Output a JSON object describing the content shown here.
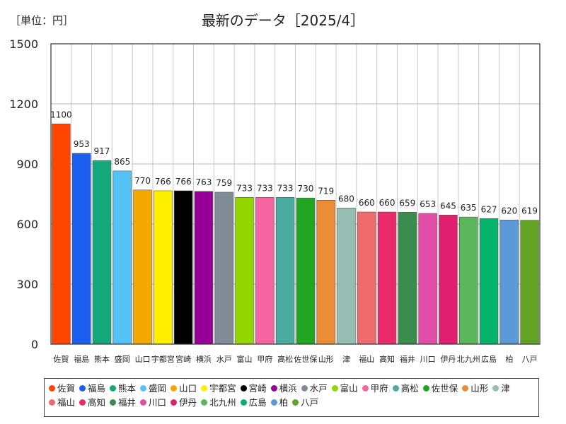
{
  "unit_label": "［単位：円］",
  "chart_data": {
    "type": "bar",
    "title": "最新のデータ［2025/4］",
    "xlabel": "",
    "ylabel": "",
    "ylim": [
      0,
      1500
    ],
    "yticks": [
      0,
      300,
      600,
      900,
      1200,
      1500
    ],
    "grid": true,
    "legend_position": "bottom",
    "categories": [
      "佐賀",
      "福島",
      "熊本",
      "盛岡",
      "山口",
      "宇都宮",
      "宮崎",
      "横浜",
      "水戸",
      "富山",
      "甲府",
      "高松",
      "佐世保",
      "山形",
      "津",
      "福山",
      "高知",
      "福井",
      "川口",
      "伊丹",
      "北九州",
      "広島",
      "柏",
      "八戸"
    ],
    "values": [
      1100,
      953,
      917,
      865,
      770,
      766,
      766,
      763,
      759,
      733,
      733,
      733,
      730,
      719,
      680,
      660,
      660,
      659,
      653,
      645,
      635,
      627,
      620,
      619
    ],
    "colors": [
      "#ff4500",
      "#1a5ff0",
      "#12a87a",
      "#55c2f5",
      "#f5a800",
      "#fff000",
      "#000000",
      "#970097",
      "#808c98",
      "#94d700",
      "#f566a0",
      "#4aaba1",
      "#22a622",
      "#ea8d36",
      "#97bdb3",
      "#ef6a6a",
      "#ea2b6a",
      "#3b8c4f",
      "#e04ea7",
      "#e0206e",
      "#5cb65c",
      "#06b36a",
      "#5b9ad6",
      "#62a325"
    ]
  }
}
